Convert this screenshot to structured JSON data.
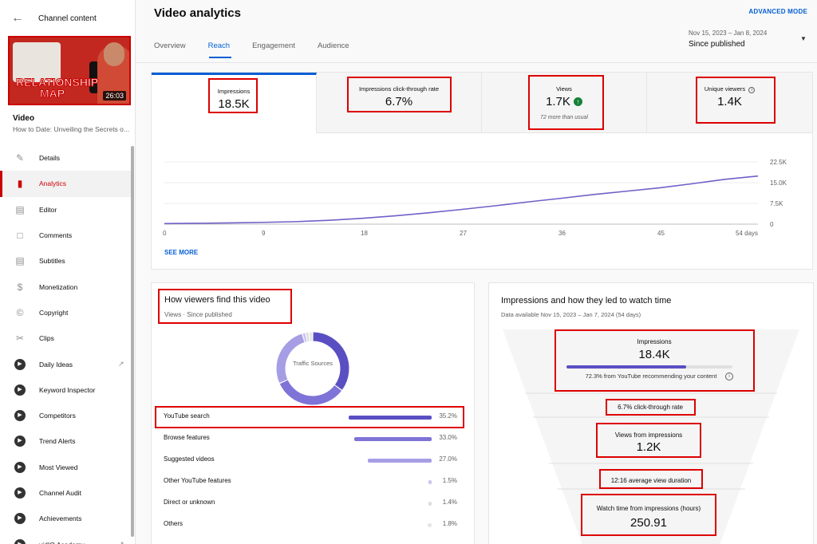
{
  "sidebar": {
    "back_title": "Channel content",
    "thumbnail": {
      "text_line1": "RELATIONSHIP",
      "text_line2": "MAP",
      "duration": "26:03"
    },
    "video_label": "Video",
    "video_title": "How to Date: Unveiling the Secrets o...",
    "items": [
      {
        "label": "Details",
        "icon": "pencil-icon"
      },
      {
        "label": "Analytics",
        "icon": "bar-chart-icon",
        "active": true
      },
      {
        "label": "Editor",
        "icon": "film-strip-icon"
      },
      {
        "label": "Comments",
        "icon": "comment-icon"
      },
      {
        "label": "Subtitles",
        "icon": "subtitles-icon"
      },
      {
        "label": "Monetization",
        "icon": "dollar-icon"
      },
      {
        "label": "Copyright",
        "icon": "copyright-icon"
      },
      {
        "label": "Clips",
        "icon": "scissors-icon"
      },
      {
        "label": "Daily Ideas",
        "icon": "vidiq-icon",
        "external": true
      },
      {
        "label": "Keyword Inspector",
        "icon": "vidiq-icon"
      },
      {
        "label": "Competitors",
        "icon": "vidiq-icon"
      },
      {
        "label": "Trend Alerts",
        "icon": "vidiq-icon"
      },
      {
        "label": "Most Viewed",
        "icon": "vidiq-icon"
      },
      {
        "label": "Channel Audit",
        "icon": "vidiq-icon"
      },
      {
        "label": "Achievements",
        "icon": "vidiq-icon"
      },
      {
        "label": "vidIQ Academy",
        "icon": "vidiq-icon",
        "external": true
      }
    ]
  },
  "header": {
    "title": "Video analytics",
    "advanced_mode": "ADVANCED MODE",
    "tabs": [
      "Overview",
      "Reach",
      "Engagement",
      "Audience"
    ],
    "active_tab": "Reach",
    "date_range": "Nov 15, 2023 – Jan 8, 2024",
    "date_sub": "Since published"
  },
  "metrics": [
    {
      "label": "Impressions",
      "value": "18.5K"
    },
    {
      "label": "Impressions click-through rate",
      "value": "6.7%"
    },
    {
      "label": "Views",
      "value": "1.7K",
      "note": "72 more than usual",
      "trend_icon": "arrow-up-icon"
    },
    {
      "label": "Unique viewers",
      "value": "1.4K",
      "info_icon": "info-icon"
    }
  ],
  "chart_data": {
    "type": "line",
    "x_ticks": [
      "0",
      "9",
      "18",
      "27",
      "36",
      "45",
      "54 days"
    ],
    "y_ticks": [
      "0",
      "7.5K",
      "15.0K",
      "22.5K"
    ],
    "ylim": [
      0,
      22500
    ],
    "xlim": [
      0,
      54
    ],
    "x": [
      0,
      3,
      6,
      9,
      12,
      15,
      18,
      21,
      24,
      27,
      30,
      33,
      36,
      39,
      42,
      45,
      48,
      51,
      54
    ],
    "y": [
      200,
      300,
      450,
      650,
      900,
      1400,
      2100,
      3000,
      4100,
      5300,
      6600,
      8000,
      9300,
      10700,
      11900,
      13100,
      14600,
      16200,
      17400
    ],
    "color": "#6f60c8",
    "grid": true
  },
  "see_more": "SEE MORE",
  "traffic": {
    "title": "How viewers find this video",
    "subtitle": "Views · Since published",
    "donut_label": "Traffic Sources",
    "sources": [
      {
        "name": "YouTube search",
        "pct": "35.2%",
        "value": 35.2
      },
      {
        "name": "Browse features",
        "pct": "33.0%",
        "value": 33.0
      },
      {
        "name": "Suggested videos",
        "pct": "27.0%",
        "value": 27.0
      },
      {
        "name": "Other YouTube features",
        "pct": "1.5%",
        "value": 1.5
      },
      {
        "name": "Direct or unknown",
        "pct": "1.4%",
        "value": 1.4
      },
      {
        "name": "Others",
        "pct": "1.8%",
        "value": 1.8
      }
    ],
    "colors": [
      "#5a4fc2",
      "#7e73d6",
      "#a69ee4",
      "#c8c3ef",
      "#dcdcdc",
      "#e6e6e6"
    ]
  },
  "funnel": {
    "title": "Impressions and how they led to watch time",
    "subtitle": "Data available Nov 15, 2023 – Jan 7, 2024 (54 days)",
    "impressions_label": "Impressions",
    "impressions_value": "18.4K",
    "recommend_fraction": 0.723,
    "recommend_text": "72.3% from YouTube recommending your content",
    "ctr_text": "6.7% click-through rate",
    "views_label": "Views from impressions",
    "views_value": "1.2K",
    "avd_text": "12:16 average view duration",
    "watch_label": "Watch time from impressions (hours)",
    "watch_value": "250.91"
  }
}
